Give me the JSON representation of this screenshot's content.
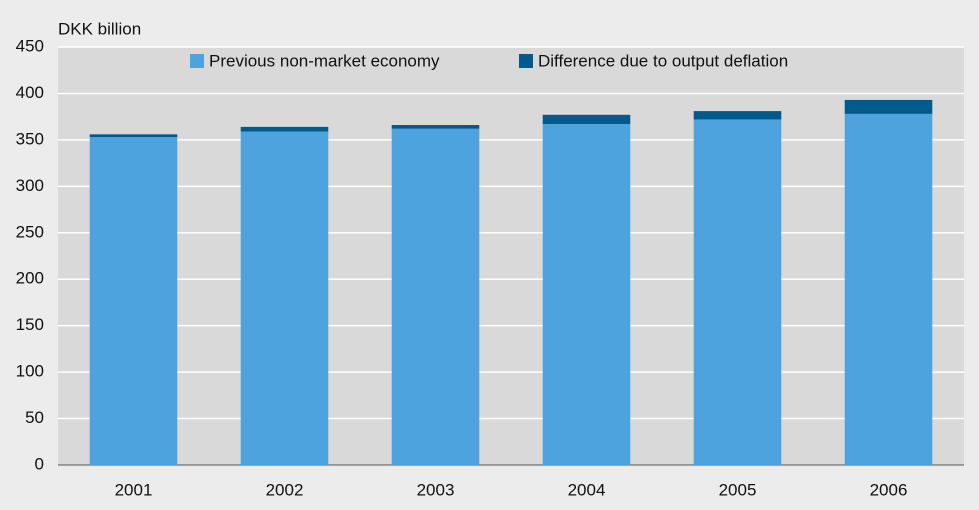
{
  "chart_data": {
    "type": "stacked_bar",
    "y_axis_label": "DKK billion",
    "categories": [
      "2001",
      "2002",
      "2003",
      "2004",
      "2005",
      "2006"
    ],
    "series": [
      {
        "name": "Previous non-market economy",
        "color": "#4ca3dd",
        "values": [
          353,
          359,
          362,
          367,
          372,
          378
        ]
      },
      {
        "name": "Difference due to output deflation",
        "color": "#005a8c",
        "values": [
          3,
          5,
          4,
          10,
          9,
          15
        ]
      }
    ],
    "ylim": [
      0,
      450
    ],
    "yticks": [
      0,
      50,
      100,
      150,
      200,
      250,
      300,
      350,
      400,
      450
    ],
    "grid": true
  }
}
